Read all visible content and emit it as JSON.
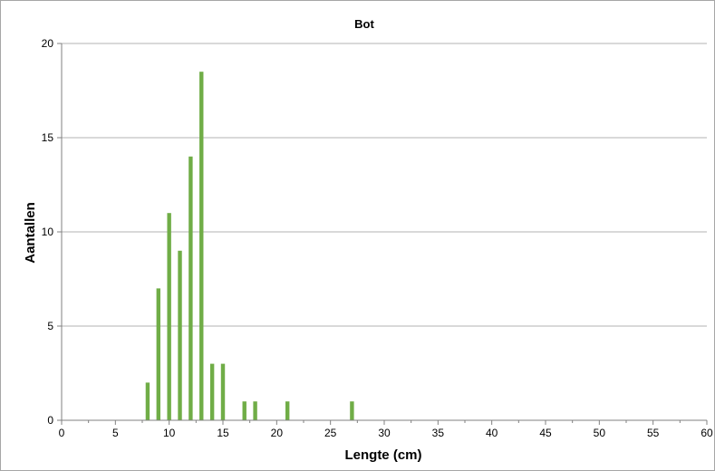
{
  "chart_data": {
    "type": "bar",
    "title": "Bot",
    "xlabel": "Lengte (cm)",
    "ylabel": "Aantallen",
    "xlim": [
      0,
      60
    ],
    "ylim": [
      0,
      20
    ],
    "x_ticks": [
      "0",
      "5",
      "10",
      "15",
      "20",
      "25",
      "30",
      "35",
      "40",
      "45",
      "50",
      "55",
      "60"
    ],
    "y_ticks": [
      "0",
      "5",
      "10",
      "15",
      "20"
    ],
    "grid": "horizontal",
    "bar_color": "#70ad47",
    "x": [
      8,
      9,
      10,
      11,
      12,
      13,
      14,
      15,
      17,
      18,
      21,
      27
    ],
    "values": [
      2,
      7,
      11,
      9,
      14,
      18.5,
      3,
      3,
      1,
      1,
      1,
      1
    ]
  }
}
